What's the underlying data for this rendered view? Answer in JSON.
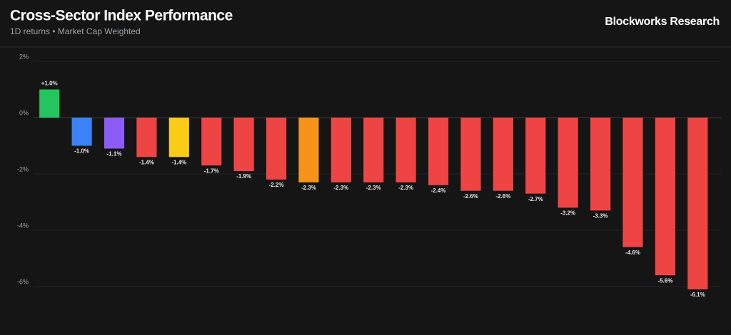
{
  "chart_data": {
    "type": "bar",
    "title": "Cross-Sector Index Performance",
    "subtitle": "1D returns • Market Cap Weighted",
    "source": "Blockworks Research",
    "categories": [
      null,
      null,
      null,
      null,
      null,
      null,
      null,
      null,
      null,
      null,
      null,
      null,
      null,
      null,
      null,
      null,
      null,
      null,
      null,
      null,
      null
    ],
    "values": [
      1.0,
      -1.0,
      -1.1,
      -1.4,
      -1.4,
      -1.7,
      -1.9,
      -2.2,
      -2.3,
      -2.3,
      -2.3,
      -2.3,
      -2.4,
      -2.6,
      -2.6,
      -2.7,
      -3.2,
      -3.3,
      -4.6,
      -5.6,
      -6.1
    ],
    "value_labels": [
      "+1.0%",
      "-1.0%",
      "-1.1%",
      "-1.4%",
      "-1.4%",
      "-1.7%",
      "-1.9%",
      "-2.2%",
      "-2.3%",
      "-2.3%",
      "-2.3%",
      "-2.3%",
      "-2.4%",
      "-2.6%",
      "-2.6%",
      "-2.7%",
      "-3.2%",
      "-3.3%",
      "-4.6%",
      "-5.6%",
      "-6.1%"
    ],
    "colors": [
      "#22c55e",
      "#3b82f6",
      "#8b5cf6",
      "#ef4444",
      "#facc15",
      "#ef4444",
      "#ef4444",
      "#ef4444",
      "#f7931a",
      "#ef4444",
      "#ef4444",
      "#ef4444",
      "#ef4444",
      "#ef4444",
      "#ef4444",
      "#ef4444",
      "#ef4444",
      "#ef4444",
      "#ef4444",
      "#ef4444",
      "#ef4444"
    ],
    "ylim": [
      -7,
      2
    ],
    "yticks": [
      {
        "value": 2,
        "label": "2%"
      },
      {
        "value": 0,
        "label": "0%"
      },
      {
        "value": -2,
        "label": "-2%"
      },
      {
        "value": -4,
        "label": "-4%"
      },
      {
        "value": -6,
        "label": "-6%"
      }
    ],
    "grid": true
  }
}
